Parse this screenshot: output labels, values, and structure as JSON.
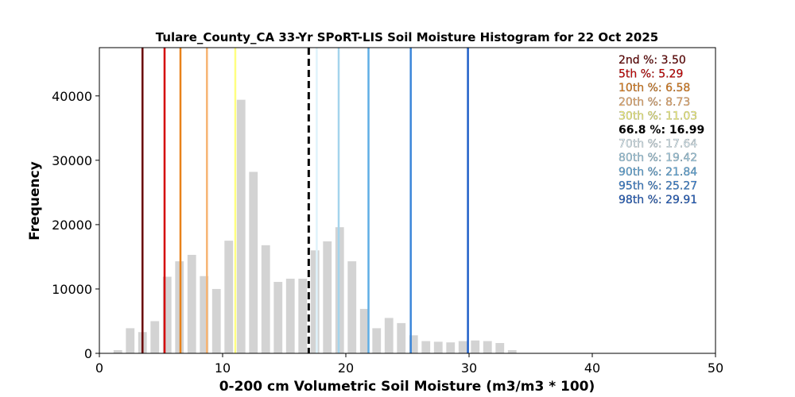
{
  "chart_data": {
    "type": "bar",
    "title": "Tulare_County_CA 33-Yr SPoRT-LIS Soil Moisture Histogram for 22 Oct 2025",
    "xlabel": "0-200 cm Volumetric Soil Moisture (m3/m3 * 100)",
    "ylabel": "Frequency",
    "xlim": [
      0,
      50
    ],
    "ylim": [
      0,
      47500
    ],
    "xticks": [
      "0",
      "10",
      "20",
      "30",
      "40",
      "50"
    ],
    "yticks": [
      "0",
      "10000",
      "20000",
      "30000",
      "40000"
    ],
    "xtick_values": [
      0,
      10,
      20,
      30,
      40,
      50
    ],
    "ytick_values": [
      0,
      10000,
      20000,
      30000,
      40000
    ],
    "bar_color": "#d3d3d3",
    "bar_width": 0.7,
    "bins": [
      1.5,
      2.5,
      3.5,
      4.5,
      5.5,
      6.5,
      7.5,
      8.5,
      9.5,
      10.5,
      11.5,
      12.5,
      13.5,
      14.5,
      15.5,
      16.5,
      17.5,
      18.5,
      19.5,
      20.5,
      21.5,
      22.5,
      23.5,
      24.5,
      25.5,
      26.5,
      27.5,
      28.5,
      29.5,
      30.5,
      31.5,
      32.5,
      33.5
    ],
    "values": [
      500,
      3900,
      3300,
      5000,
      11900,
      14300,
      15300,
      12000,
      10000,
      17500,
      39400,
      28200,
      16800,
      11100,
      11600,
      11600,
      16000,
      17400,
      19600,
      14300,
      6900,
      3900,
      5500,
      4700,
      2800,
      1900,
      1800,
      1700,
      1900,
      2000,
      1900,
      1600,
      500
    ],
    "percentile_lines": [
      {
        "label": "2nd %: 3.50",
        "value": 3.5,
        "color": "#6b0000",
        "style": "solid"
      },
      {
        "label": "5th %: 5.29",
        "value": 5.29,
        "color": "#d40000",
        "style": "solid"
      },
      {
        "label": "10th %: 6.58",
        "value": 6.58,
        "color": "#e8821a",
        "style": "solid"
      },
      {
        "label": "20th %: 8.73",
        "value": 8.73,
        "color": "#f7b472",
        "style": "solid"
      },
      {
        "label": "30th %: 11.03",
        "value": 11.03,
        "color": "#ffff80",
        "style": "solid"
      },
      {
        "label": "66.8 %: 16.99",
        "value": 16.99,
        "color": "#000000",
        "style": "dashed"
      },
      {
        "label": "70th %: 17.64",
        "value": 17.64,
        "color": "#dff3fb",
        "style": "solid"
      },
      {
        "label": "80th %: 19.42",
        "value": 19.42,
        "color": "#a4d4ec",
        "style": "solid"
      },
      {
        "label": "90th %: 21.84",
        "value": 21.84,
        "color": "#5faee5",
        "style": "solid"
      },
      {
        "label": "95th %: 25.27",
        "value": 25.27,
        "color": "#3b86d9",
        "style": "solid"
      },
      {
        "label": "98th %: 29.91",
        "value": 29.91,
        "color": "#1f5fc8",
        "style": "solid"
      }
    ],
    "legend_position": "top-right",
    "grid": false
  }
}
